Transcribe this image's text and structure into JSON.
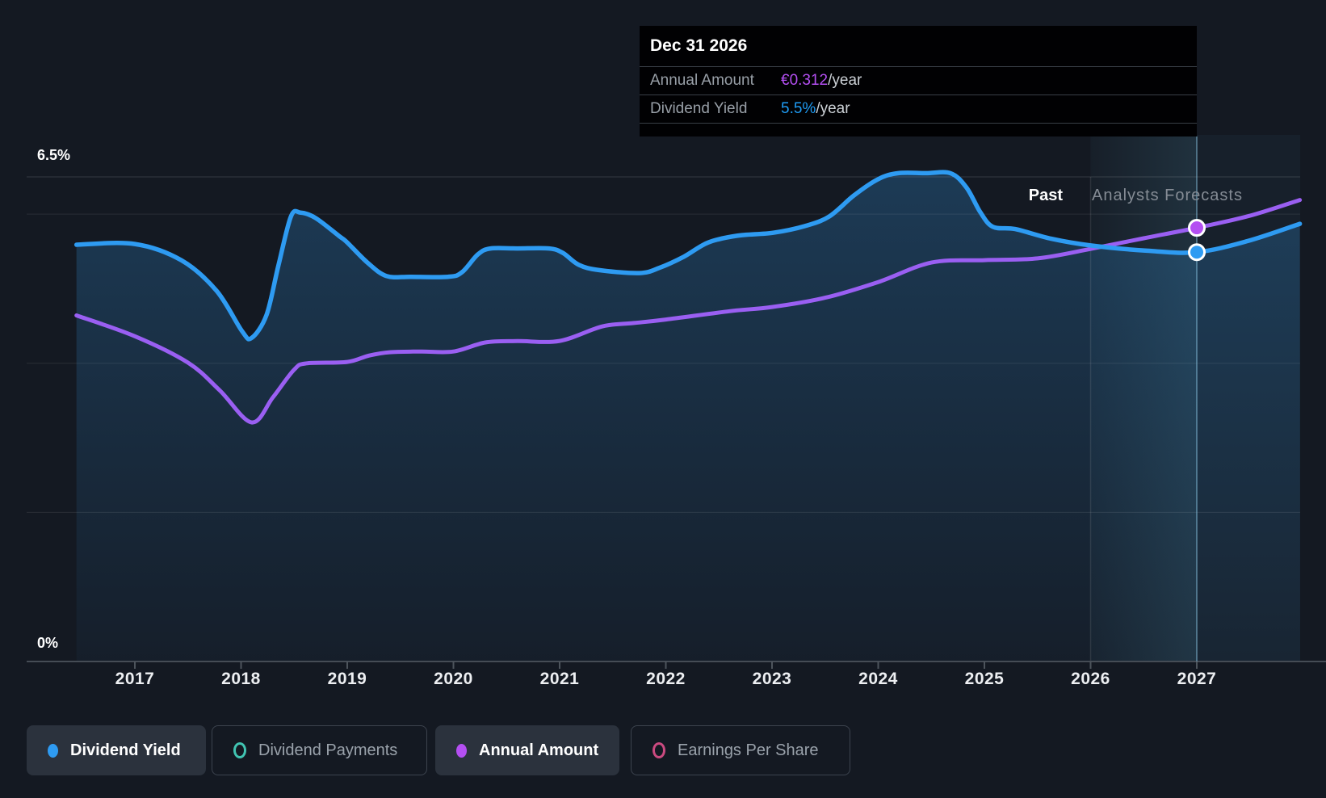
{
  "tooltip": {
    "title": "Dec 31 2026",
    "rows": [
      {
        "label": "Annual Amount",
        "value": "€0.312",
        "suffix": "/year",
        "value_color": "#b44ff2"
      },
      {
        "label": "Dividend Yield",
        "value": "5.5%",
        "suffix": "/year",
        "value_color": "#1f9cf4"
      }
    ]
  },
  "axis": {
    "y_top_label": "6.5%",
    "y_bottom_label": "0%"
  },
  "annotations": {
    "past_label": "Past",
    "forecast_label": "Analysts Forecasts"
  },
  "legend": [
    {
      "label": "Dividend Yield",
      "color": "#2e9bf2",
      "marker": "filled",
      "active": true
    },
    {
      "label": "Dividend Payments",
      "color": "#41c4b2",
      "marker": "ring",
      "active": false
    },
    {
      "label": "Annual Amount",
      "color": "#b44ff2",
      "marker": "filled",
      "active": true
    },
    {
      "label": "Earnings Per Share",
      "color": "#cb4a80",
      "marker": "ring",
      "active": false
    }
  ],
  "chart_data": {
    "type": "area",
    "title": "Dividend history and forecast",
    "x_ticks": [
      "2017",
      "2018",
      "2019",
      "2020",
      "2021",
      "2022",
      "2023",
      "2024",
      "2025",
      "2026",
      "2027"
    ],
    "x_range": [
      2016.45,
      2027.97
    ],
    "ylim_pct": [
      0,
      6.5
    ],
    "gridlines_pct": [
      6.5,
      6.0,
      4.0,
      2.0
    ],
    "grid": true,
    "legend_position": "bottom",
    "forecast_start_year": 2026.0,
    "highlight_year": 2027.0,
    "highlight_date_label": "Dec 31 2026",
    "series": [
      {
        "name": "Dividend Yield",
        "unit": "%",
        "color": "#2e9bf2",
        "fill": true,
        "points": [
          [
            2016.45,
            5.59
          ],
          [
            2017.0,
            5.6
          ],
          [
            2017.44,
            5.38
          ],
          [
            2017.77,
            4.97
          ],
          [
            2018.01,
            4.43
          ],
          [
            2018.1,
            4.34
          ],
          [
            2018.24,
            4.65
          ],
          [
            2018.35,
            5.3
          ],
          [
            2018.47,
            5.97
          ],
          [
            2018.56,
            6.02
          ],
          [
            2018.7,
            5.95
          ],
          [
            2018.92,
            5.71
          ],
          [
            2019.0,
            5.62
          ],
          [
            2019.19,
            5.35
          ],
          [
            2019.37,
            5.17
          ],
          [
            2019.6,
            5.16
          ],
          [
            2019.95,
            5.16
          ],
          [
            2020.08,
            5.22
          ],
          [
            2020.23,
            5.46
          ],
          [
            2020.35,
            5.54
          ],
          [
            2020.6,
            5.54
          ],
          [
            2020.9,
            5.54
          ],
          [
            2021.03,
            5.48
          ],
          [
            2021.18,
            5.32
          ],
          [
            2021.37,
            5.25
          ],
          [
            2021.75,
            5.21
          ],
          [
            2021.94,
            5.28
          ],
          [
            2022.17,
            5.43
          ],
          [
            2022.4,
            5.62
          ],
          [
            2022.67,
            5.71
          ],
          [
            2023.01,
            5.75
          ],
          [
            2023.31,
            5.84
          ],
          [
            2023.54,
            5.97
          ],
          [
            2023.77,
            6.25
          ],
          [
            2024.0,
            6.47
          ],
          [
            2024.19,
            6.55
          ],
          [
            2024.45,
            6.55
          ],
          [
            2024.68,
            6.55
          ],
          [
            2024.83,
            6.36
          ],
          [
            2024.96,
            6.03
          ],
          [
            2025.08,
            5.83
          ],
          [
            2025.29,
            5.8
          ],
          [
            2025.63,
            5.67
          ],
          [
            2026.0,
            5.58
          ],
          [
            2026.53,
            5.51
          ],
          [
            2027.0,
            5.49
          ],
          [
            2027.48,
            5.64
          ],
          [
            2027.97,
            5.87
          ]
        ]
      },
      {
        "name": "Annual Amount",
        "unit": "EUR/year",
        "color": "#9a5ff2",
        "fill": false,
        "points": [
          [
            2016.45,
            0.249
          ],
          [
            2017.0,
            0.234
          ],
          [
            2017.5,
            0.215
          ],
          [
            2017.8,
            0.195
          ],
          [
            2018.1,
            0.172
          ],
          [
            2018.3,
            0.19
          ],
          [
            2018.5,
            0.21
          ],
          [
            2018.62,
            0.2145
          ],
          [
            2019.0,
            0.2155
          ],
          [
            2019.2,
            0.22
          ],
          [
            2019.4,
            0.2225
          ],
          [
            2019.7,
            0.223
          ],
          [
            2020.0,
            0.223
          ],
          [
            2020.3,
            0.2295
          ],
          [
            2020.6,
            0.2305
          ],
          [
            2021.0,
            0.2306
          ],
          [
            2021.4,
            0.241
          ],
          [
            2021.7,
            0.2435
          ],
          [
            2022.0,
            0.246
          ],
          [
            2022.6,
            0.252
          ],
          [
            2023.0,
            0.255
          ],
          [
            2023.5,
            0.2617
          ],
          [
            2024.0,
            0.273
          ],
          [
            2024.5,
            0.287
          ],
          [
            2025.0,
            0.2887
          ],
          [
            2025.5,
            0.29
          ],
          [
            2026.0,
            0.2968
          ],
          [
            2026.5,
            0.3045
          ],
          [
            2027.0,
            0.312
          ],
          [
            2027.5,
            0.3207
          ],
          [
            2027.97,
            0.332
          ]
        ]
      }
    ],
    "markers": [
      {
        "series": "Annual Amount",
        "x": 2027.0,
        "value": 0.312,
        "display": "€0.312/year",
        "color": "#b44ff2"
      },
      {
        "series": "Dividend Yield",
        "x": 2027.0,
        "value": 5.49,
        "display": "5.5%/year",
        "color": "#2e9bf2"
      }
    ]
  }
}
